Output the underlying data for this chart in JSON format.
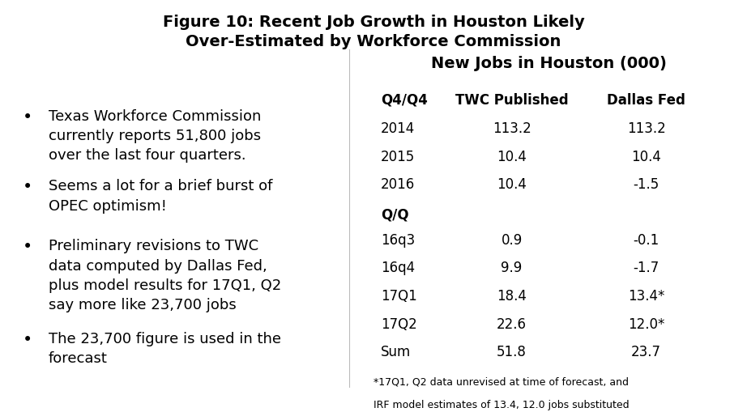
{
  "title_line1": "Figure 10: Recent Job Growth in Houston Likely",
  "title_line2": "Over-Estimated by Workforce Commission",
  "title_fontsize": 14,
  "bullet_wrapped": [
    "Texas Workforce Commission\ncurrently reports 51,800 jobs\nover the last four quarters.",
    "Seems a lot for a brief burst of\nOPEC optimism!",
    "Preliminary revisions to TWC\ndata computed by Dallas Fed,\nplus model results for 17Q1, Q2\nsay more like 23,700 jobs",
    "The 23,700 figure is used in the\nforecast"
  ],
  "table_title": "New Jobs in Houston (000)",
  "table_header": [
    "Q4/Q4",
    "TWC Published",
    "Dallas Fed"
  ],
  "table_rows": [
    [
      "2014",
      "113.2",
      "113.2"
    ],
    [
      "2015",
      "10.4",
      "10.4"
    ],
    [
      "2016",
      "10.4",
      "-1.5"
    ]
  ],
  "table_subheader": "Q/Q",
  "table_rows2": [
    [
      "16q3",
      "0.9",
      "-0.1"
    ],
    [
      "16q4",
      "9.9",
      "-1.7"
    ],
    [
      "17Q1",
      "18.4",
      "13.4*"
    ],
    [
      "17Q2",
      "22.6",
      "12.0*"
    ],
    [
      "Sum",
      "51.8",
      "23.7"
    ]
  ],
  "footnote_line1": "*17Q1, Q2 data unrevised at time of forecast, and",
  "footnote_line2": "IRF model estimates of 13.4, 12.0 jobs substituted",
  "bg_color": "#ffffff",
  "text_color": "#000000",
  "bullet_fontsize": 13,
  "table_fontsize": 12,
  "table_title_fontsize": 14
}
